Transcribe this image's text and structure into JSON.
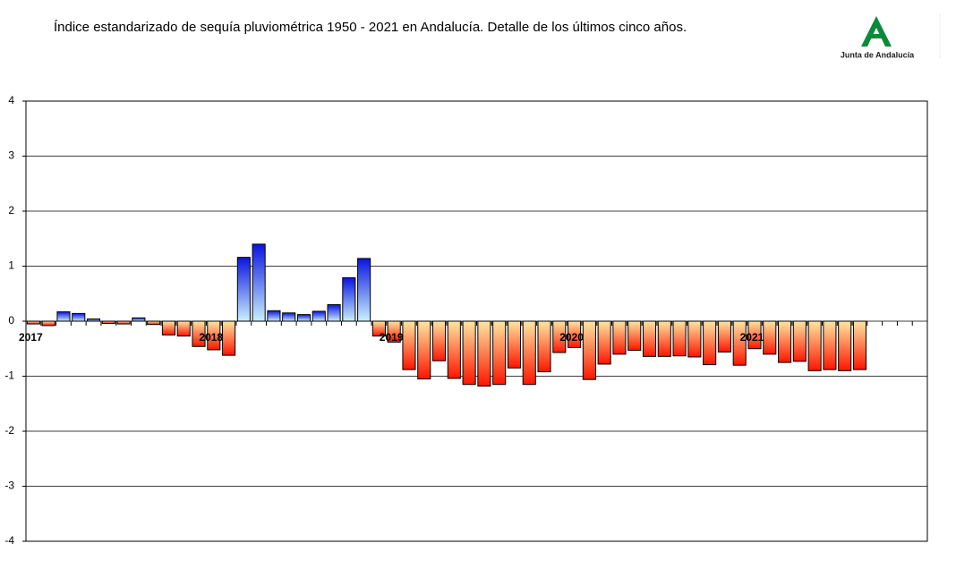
{
  "chart_data": {
    "type": "bar",
    "title": "Índice estandarizado de sequía pluviométrica 1950 - 2021 en Andalucía. Detalle de los últimos cinco años.",
    "logo_text": "Junta de Andalucía",
    "categories": [
      "2017",
      null,
      null,
      null,
      null,
      null,
      null,
      null,
      null,
      null,
      null,
      null,
      "2018",
      null,
      null,
      null,
      null,
      null,
      null,
      null,
      null,
      null,
      null,
      null,
      "2019",
      null,
      null,
      null,
      null,
      null,
      null,
      null,
      null,
      null,
      null,
      null,
      "2020",
      null,
      null,
      null,
      null,
      null,
      null,
      null,
      null,
      null,
      null,
      null,
      "2021",
      null,
      null,
      null,
      null,
      null,
      null,
      null,
      null,
      null,
      null,
      null
    ],
    "values": [
      -0.05,
      -0.08,
      0.17,
      0.14,
      0.04,
      -0.04,
      -0.05,
      0.06,
      -0.06,
      -0.25,
      -0.27,
      -0.46,
      -0.52,
      -0.62,
      1.16,
      1.4,
      0.19,
      0.15,
      0.12,
      0.18,
      0.3,
      0.79,
      1.14,
      -0.27,
      -0.38,
      -0.88,
      -1.05,
      -0.72,
      -1.04,
      -1.15,
      -1.18,
      -1.15,
      -0.85,
      -1.15,
      -0.92,
      -0.57,
      -0.48,
      -1.06,
      -0.78,
      -0.6,
      -0.53,
      -0.64,
      -0.64,
      -0.63,
      -0.65,
      -0.79,
      -0.56,
      -0.8,
      -0.5,
      -0.6,
      -0.75,
      -0.73,
      -0.9,
      -0.88,
      -0.9,
      -0.88,
      null,
      null,
      null,
      null
    ],
    "positive_gradient": [
      "#0a14e0",
      "#c8f0ff"
    ],
    "negative_gradient": [
      "#ffe6a0",
      "#ff1400"
    ],
    "ylim": [
      -4,
      4
    ],
    "yticks": [
      -4,
      -3,
      -2,
      -1,
      0,
      1,
      2,
      3,
      4
    ],
    "grid": true
  }
}
